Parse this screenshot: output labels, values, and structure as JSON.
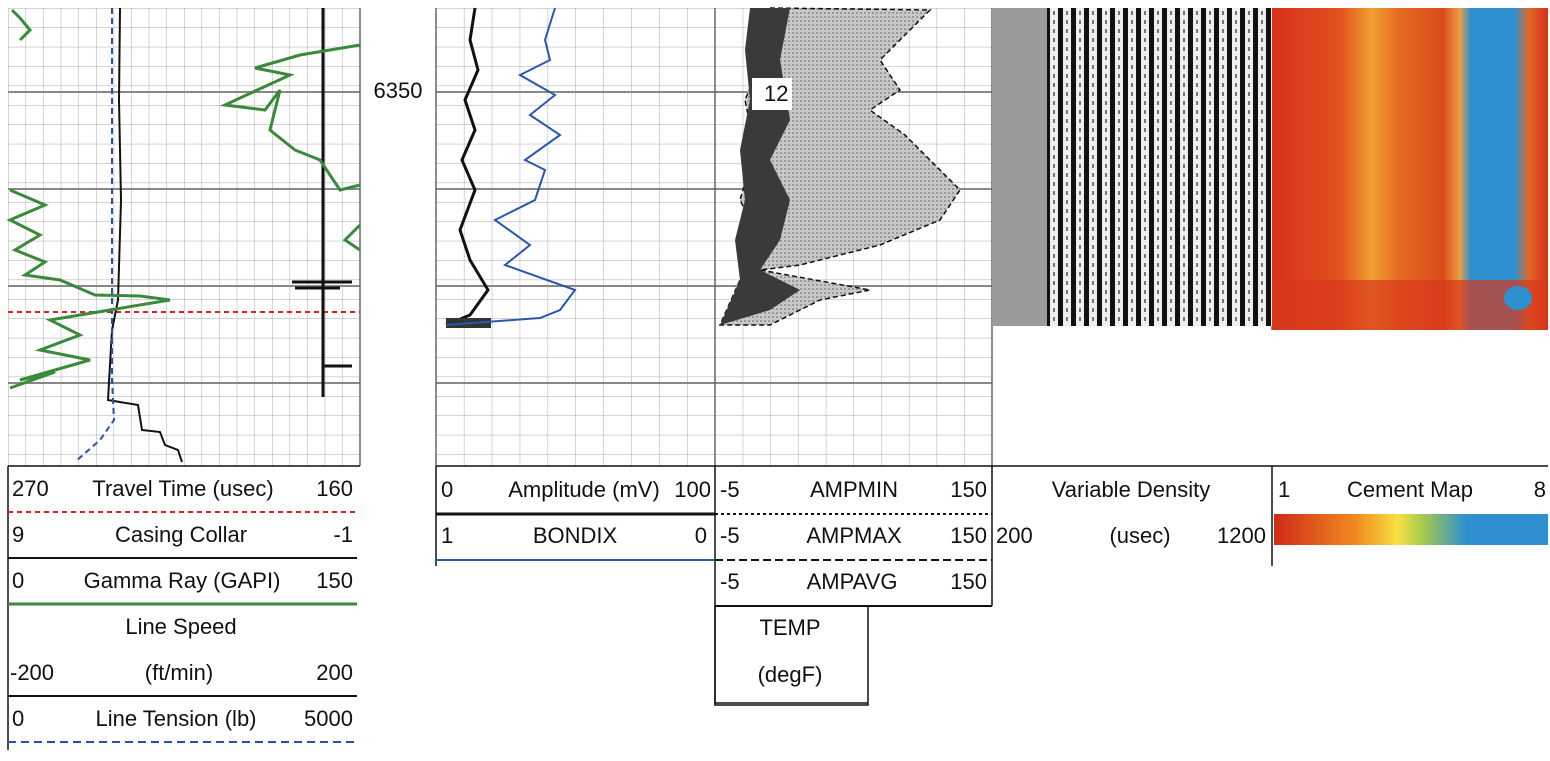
{
  "depth_label": "6350",
  "flag_label": "12",
  "track_1": {
    "legend": [
      {
        "left": "270",
        "name": "Travel Time (usec)",
        "right": "160"
      },
      {
        "left": "9",
        "name": "Casing Collar",
        "right": "-1"
      },
      {
        "left": "0",
        "name": "Gamma Ray (GAPI)",
        "right": "150"
      },
      {
        "title": "Line Speed",
        "left": "-200",
        "name": "(ft/min)",
        "right": "200"
      },
      {
        "left": "0",
        "name": "Line Tension (lb)",
        "right": "5000"
      }
    ]
  },
  "track_2": {
    "legend": [
      {
        "left": "0",
        "name": "Amplitude (mV)",
        "right": "100"
      },
      {
        "left": "1",
        "name": "BONDIX",
        "right": "0"
      }
    ]
  },
  "track_3": {
    "legend": [
      {
        "left": "-5",
        "name": "AMPMIN",
        "right": "150"
      },
      {
        "left": "-5",
        "name": "AMPMAX",
        "right": "150"
      },
      {
        "left": "-5",
        "name": "AMPAVG",
        "right": "150"
      }
    ],
    "temp": {
      "name": "TEMP",
      "unit": "(degF)"
    }
  },
  "track_4": {
    "title": "Variable Density",
    "left": "200",
    "name": "(usec)",
    "right": "1200"
  },
  "track_5": {
    "left": "1",
    "name": "Cement Map",
    "right": "8"
  }
}
